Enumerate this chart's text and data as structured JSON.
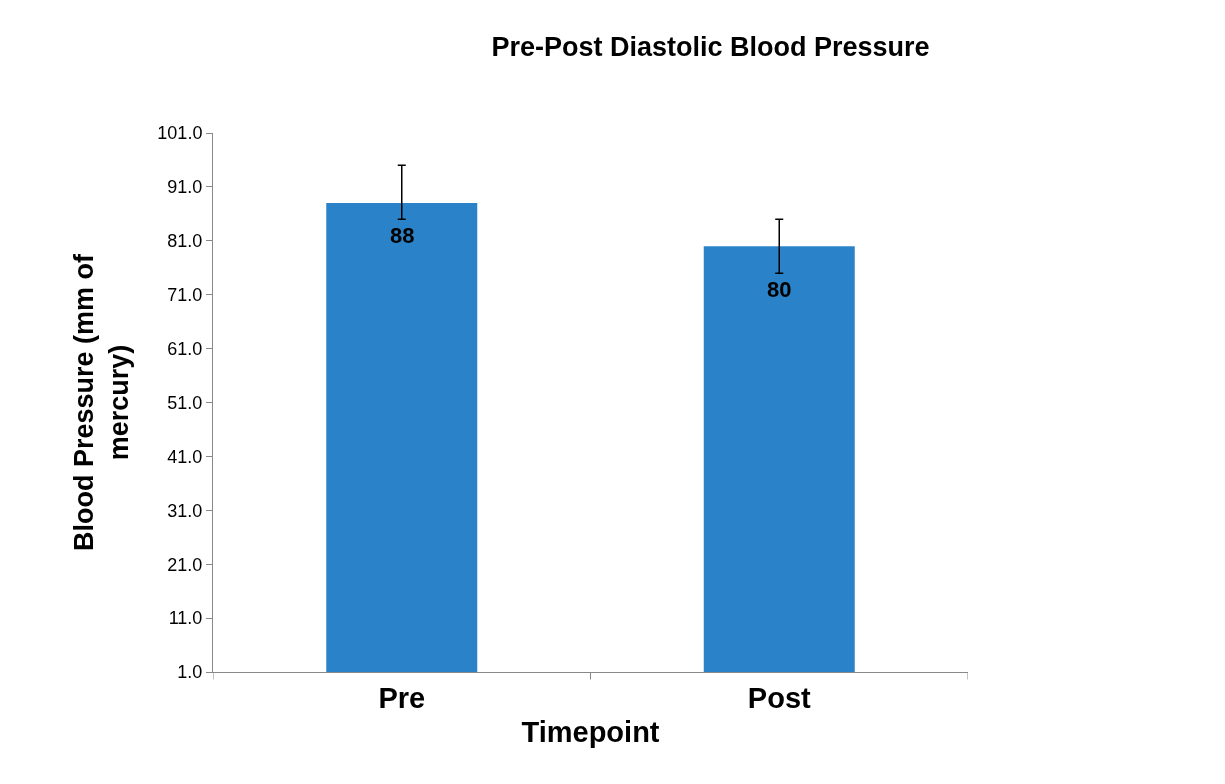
{
  "chart_data": {
    "type": "bar",
    "title": "Pre-Post Diastolic Blood Pressure",
    "xlabel": "Timepoint",
    "ylabel": "Blood Pressure (mm of mercury)",
    "categories": [
      "Pre",
      "Post"
    ],
    "values": [
      88,
      80
    ],
    "color": "#2a83c8",
    "errors": [
      [
        85,
        95
      ],
      [
        75,
        85
      ]
    ],
    "data_labels": true,
    "ylim": [
      1,
      101
    ],
    "yticks": [
      {
        "value": 1,
        "label": "1.0"
      },
      {
        "value": 11,
        "label": "11.0"
      },
      {
        "value": 21,
        "label": "21.0"
      },
      {
        "value": 31,
        "label": "31.0"
      },
      {
        "value": 41,
        "label": "41.0"
      },
      {
        "value": 51,
        "label": "51.0"
      },
      {
        "value": 61,
        "label": "61.0"
      },
      {
        "value": 71,
        "label": "71.0"
      },
      {
        "value": 81,
        "label": "81.0"
      },
      {
        "value": 91,
        "label": "91.0"
      },
      {
        "value": 101,
        "label": "101.0"
      }
    ],
    "legend": false
  }
}
